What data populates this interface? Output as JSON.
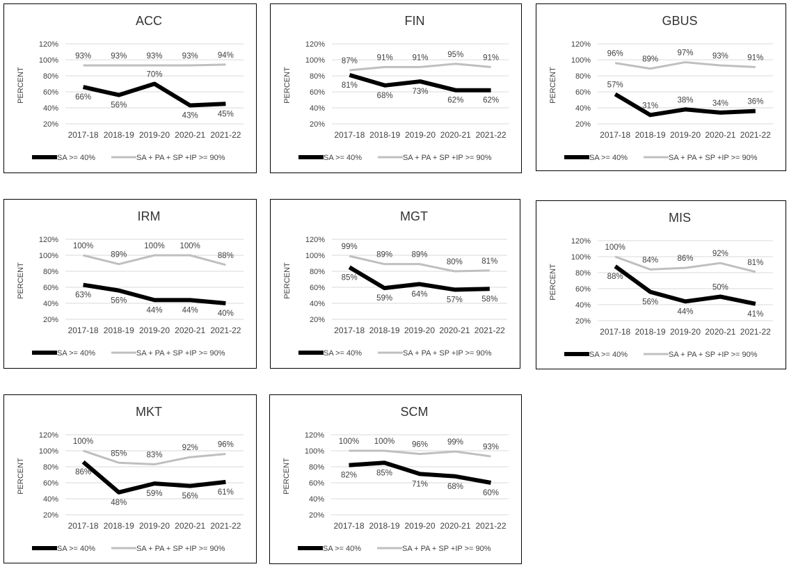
{
  "chart_data": [
    {
      "type": "line",
      "title": "ACC",
      "ylabel": "PERCENT",
      "ylim": [
        20,
        120
      ],
      "yticks": [
        "20%",
        "40%",
        "60%",
        "80%",
        "100%",
        "120%"
      ],
      "categories": [
        "2017-18",
        "2018-19",
        "2019-20",
        "2020-21",
        "2021-22"
      ],
      "series": [
        {
          "name": "SA >= 40%",
          "values": [
            66,
            56,
            70,
            43,
            45
          ],
          "labels": [
            "66%",
            "56%",
            "70%",
            "43%",
            "45%"
          ],
          "color": "#000000"
        },
        {
          "name": "SA + PA + SP +IP >= 90%",
          "values": [
            93,
            93,
            93,
            93,
            94
          ],
          "labels": [
            "93%",
            "93%",
            "93%",
            "93%",
            "94%"
          ],
          "color": "#bfbfbf"
        }
      ]
    },
    {
      "type": "line",
      "title": "FIN",
      "ylabel": "PERCENT",
      "ylim": [
        20,
        120
      ],
      "yticks": [
        "20%",
        "40%",
        "60%",
        "80%",
        "100%",
        "120%"
      ],
      "categories": [
        "2017-18",
        "2018-19",
        "2019-20",
        "2020-21",
        "2021-22"
      ],
      "series": [
        {
          "name": "SA >= 40%",
          "values": [
            81,
            68,
            73,
            62,
            62
          ],
          "labels": [
            "81%",
            "68%",
            "73%",
            "62%",
            "62%"
          ],
          "color": "#000000"
        },
        {
          "name": "SA + PA + SP +IP >= 90%",
          "values": [
            87,
            91,
            91,
            95,
            91
          ],
          "labels": [
            "87%",
            "91%",
            "91%",
            "95%",
            "91%"
          ],
          "color": "#bfbfbf"
        }
      ]
    },
    {
      "type": "line",
      "title": "GBUS",
      "ylabel": "PERCENT",
      "ylim": [
        20,
        120
      ],
      "yticks": [
        "20%",
        "40%",
        "60%",
        "80%",
        "100%",
        "120%"
      ],
      "categories": [
        "2017-18",
        "2018-19",
        "2019-20",
        "2020-21",
        "2021-22"
      ],
      "series": [
        {
          "name": "SA >= 40%",
          "values": [
            57,
            31,
            38,
            34,
            36
          ],
          "labels": [
            "57%",
            "31%",
            "38%",
            "34%",
            "36%"
          ],
          "color": "#000000"
        },
        {
          "name": "SA + PA + SP +IP >= 90%",
          "values": [
            96,
            89,
            97,
            93,
            91
          ],
          "labels": [
            "96%",
            "89%",
            "97%",
            "93%",
            "91%"
          ],
          "color": "#bfbfbf"
        }
      ]
    },
    {
      "type": "line",
      "title": "IRM",
      "ylabel": "PERCENT",
      "ylim": [
        20,
        120
      ],
      "yticks": [
        "20%",
        "40%",
        "60%",
        "80%",
        "100%",
        "120%"
      ],
      "categories": [
        "2017-18",
        "2018-19",
        "2019-20",
        "2020-21",
        "2021-22"
      ],
      "series": [
        {
          "name": "SA >= 40%",
          "values": [
            63,
            56,
            44,
            44,
            40
          ],
          "labels": [
            "63%",
            "56%",
            "44%",
            "44%",
            "40%"
          ],
          "color": "#000000"
        },
        {
          "name": "SA + PA + SP +IP >= 90%",
          "values": [
            100,
            89,
            100,
            100,
            88
          ],
          "labels": [
            "100%",
            "89%",
            "100%",
            "100%",
            "88%"
          ],
          "color": "#bfbfbf"
        }
      ]
    },
    {
      "type": "line",
      "title": "MGT",
      "ylabel": "PERCENT",
      "ylim": [
        20,
        120
      ],
      "yticks": [
        "20%",
        "40%",
        "60%",
        "80%",
        "100%",
        "120%"
      ],
      "categories": [
        "2017-18",
        "2018-19",
        "2019-20",
        "2020-21",
        "2021-22"
      ],
      "series": [
        {
          "name": "SA >= 40%",
          "values": [
            85,
            59,
            64,
            57,
            58
          ],
          "labels": [
            "85%",
            "59%",
            "64%",
            "57%",
            "58%"
          ],
          "color": "#000000"
        },
        {
          "name": "SA + PA + SP +IP >= 90%",
          "values": [
            99,
            89,
            89,
            80,
            81
          ],
          "labels": [
            "99%",
            "89%",
            "89%",
            "80%",
            "81%"
          ],
          "color": "#bfbfbf"
        }
      ]
    },
    {
      "type": "line",
      "title": "MIS",
      "ylabel": "PERCENT",
      "ylim": [
        20,
        120
      ],
      "yticks": [
        "20%",
        "40%",
        "60%",
        "80%",
        "100%",
        "120%"
      ],
      "categories": [
        "2017-18",
        "2018-19",
        "2019-20",
        "2020-21",
        "2021-22"
      ],
      "series": [
        {
          "name": "SA >= 40%",
          "values": [
            88,
            56,
            44,
            50,
            41
          ],
          "labels": [
            "88%",
            "56%",
            "44%",
            "50%",
            "41%"
          ],
          "color": "#000000"
        },
        {
          "name": "SA + PA + SP +IP >= 90%",
          "values": [
            100,
            84,
            86,
            92,
            81
          ],
          "labels": [
            "100%",
            "84%",
            "86%",
            "92%",
            "81%"
          ],
          "color": "#bfbfbf"
        }
      ]
    },
    {
      "type": "line",
      "title": "MKT",
      "ylabel": "PERCENT",
      "ylim": [
        20,
        120
      ],
      "yticks": [
        "20%",
        "40%",
        "60%",
        "80%",
        "100%",
        "120%"
      ],
      "categories": [
        "2017-18",
        "2018-19",
        "2019-20",
        "2020-21",
        "2021-22"
      ],
      "series": [
        {
          "name": "SA >= 40%",
          "values": [
            86,
            48,
            59,
            56,
            61
          ],
          "labels": [
            "86%",
            "48%",
            "59%",
            "56%",
            "61%"
          ],
          "color": "#000000"
        },
        {
          "name": "SA + PA + SP +IP >= 90%",
          "values": [
            100,
            85,
            83,
            92,
            96
          ],
          "labels": [
            "100%",
            "85%",
            "83%",
            "92%",
            "96%"
          ],
          "color": "#bfbfbf"
        }
      ]
    },
    {
      "type": "line",
      "title": "SCM",
      "ylabel": "PERCENT",
      "ylim": [
        20,
        120
      ],
      "yticks": [
        "20%",
        "40%",
        "60%",
        "80%",
        "100%",
        "120%"
      ],
      "categories": [
        "2017-18",
        "2018-19",
        "2019-20",
        "2020-21",
        "2021-22"
      ],
      "series": [
        {
          "name": "SA >= 40%",
          "values": [
            82,
            85,
            71,
            68,
            60
          ],
          "labels": [
            "82%",
            "85%",
            "71%",
            "68%",
            "60%"
          ],
          "color": "#000000"
        },
        {
          "name": "SA + PA + SP +IP >= 90%",
          "values": [
            100,
            100,
            96,
            99,
            93
          ],
          "labels": [
            "100%",
            "100%",
            "96%",
            "99%",
            "93%"
          ],
          "color": "#bfbfbf"
        }
      ]
    }
  ]
}
